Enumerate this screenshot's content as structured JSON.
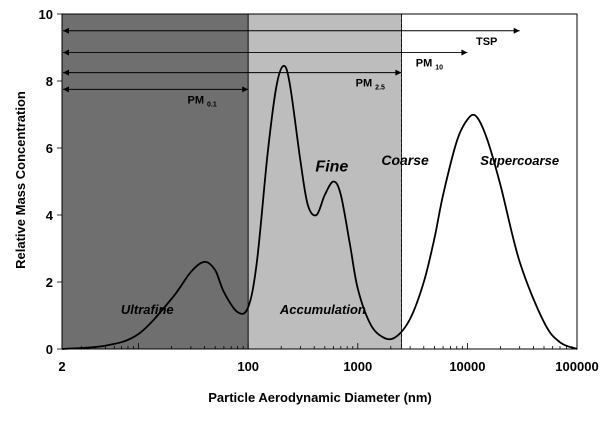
{
  "chart_data": {
    "type": "line",
    "xlabel": "Particle Aerodynamic Diameter (nm)",
    "ylabel": "Relative Mass Concentration",
    "xscale": "log",
    "xlim": [
      2,
      100000
    ],
    "ylim": [
      0,
      10
    ],
    "x_ticks": [
      {
        "value": 2,
        "label": "2"
      },
      {
        "value": 100,
        "label": "100"
      },
      {
        "value": 1000,
        "label": "1000"
      },
      {
        "value": 10000,
        "label": "10000"
      },
      {
        "value": 100000,
        "label": "100000"
      }
    ],
    "y_ticks": [
      {
        "value": 0,
        "label": "0"
      },
      {
        "value": 2,
        "label": "2"
      },
      {
        "value": 4,
        "label": "4"
      },
      {
        "value": 6,
        "label": "6"
      },
      {
        "value": 8,
        "label": "8"
      },
      {
        "value": 10,
        "label": "10"
      }
    ],
    "grid": false,
    "regions": [
      {
        "x_range": [
          2,
          100
        ],
        "color": "#6f6f6f"
      },
      {
        "x_range": [
          100,
          2500
        ],
        "color": "#bdbdbd"
      }
    ],
    "series": [
      {
        "x": [
          2,
          5,
          10,
          20,
          30,
          40,
          50,
          60,
          80,
          100,
          120,
          150,
          180,
          210,
          240,
          300,
          350,
          420,
          500,
          600,
          700,
          850,
          1000,
          1300,
          1700,
          2200,
          3000,
          4000,
          5000,
          6000,
          8000,
          10000,
          12000,
          15000,
          20000,
          30000,
          50000,
          70000,
          100000
        ],
        "y": [
          0,
          0.1,
          0.45,
          1.5,
          2.3,
          2.6,
          2.35,
          1.7,
          1.1,
          1.25,
          2.6,
          5.8,
          7.8,
          8.45,
          7.9,
          5.6,
          4.3,
          4.0,
          4.6,
          5.0,
          4.6,
          3.1,
          1.8,
          0.75,
          0.35,
          0.35,
          0.9,
          2.0,
          3.3,
          4.6,
          6.2,
          6.85,
          6.95,
          6.3,
          4.9,
          2.6,
          0.8,
          0.2,
          0
        ]
      }
    ],
    "annotations": [
      {
        "text": "TSP",
        "kind": "range",
        "x_range": [
          2,
          30000
        ],
        "y": 9.5,
        "text_x": 15000
      },
      {
        "text": "PM",
        "subscript": "10",
        "kind": "range",
        "x_range": [
          2,
          10000
        ],
        "y": 8.85,
        "text_x": 4500
      },
      {
        "text": "PM",
        "subscript": "2.5",
        "kind": "range",
        "x_range": [
          2,
          2500
        ],
        "y": 8.25,
        "text_x": 1300
      },
      {
        "text": "PM",
        "subscript": "0.1",
        "kind": "range",
        "x_range": [
          2,
          100
        ],
        "y": 7.75,
        "text_x": 38
      },
      {
        "text": "Ultrafine",
        "kind": "region",
        "x": 12,
        "y": 1.05,
        "size": 13
      },
      {
        "text": "Accumulation",
        "kind": "region",
        "x": 480,
        "y": 1.05,
        "size": 13
      },
      {
        "text": "Fine",
        "kind": "region",
        "x": 580,
        "y": 5.3,
        "size": 16
      },
      {
        "text": "Coarse",
        "kind": "region",
        "x": 2700,
        "y": 5.5,
        "size": 14
      },
      {
        "text": "Supercoarse",
        "kind": "region",
        "x": 30000,
        "y": 5.5,
        "size": 13
      }
    ]
  }
}
